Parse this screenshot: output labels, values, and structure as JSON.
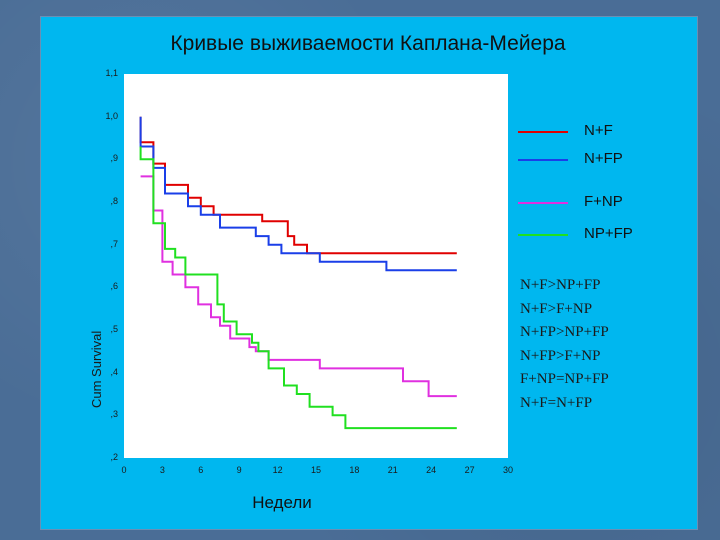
{
  "chart_data": {
    "type": "line",
    "title": "Кривые выживаемости Каплана-Мейера",
    "xlabel": "Недели",
    "ylabel": "Cum Survival",
    "xlim": [
      0,
      30
    ],
    "ylim": [
      0.2,
      1.1
    ],
    "x_ticks": [
      "0",
      "3",
      "6",
      "9",
      "12",
      "15",
      "18",
      "21",
      "24",
      "27",
      "30"
    ],
    "y_ticks": [
      "1,1",
      "1,0",
      ",9",
      ",8",
      ",7",
      ",6",
      ",5",
      ",4",
      ",3",
      ",2"
    ],
    "legend_position": "right",
    "series": [
      {
        "name": "N+F",
        "color": "#e00000",
        "points": [
          [
            1.3,
            1.0
          ],
          [
            1.3,
            0.94
          ],
          [
            2.3,
            0.94
          ],
          [
            2.3,
            0.89
          ],
          [
            3.2,
            0.89
          ],
          [
            3.2,
            0.84
          ],
          [
            5.0,
            0.84
          ],
          [
            5.0,
            0.81
          ],
          [
            6.0,
            0.81
          ],
          [
            6.0,
            0.79
          ],
          [
            7.0,
            0.79
          ],
          [
            7.0,
            0.77
          ],
          [
            10.8,
            0.77
          ],
          [
            10.8,
            0.755
          ],
          [
            12.8,
            0.755
          ],
          [
            12.8,
            0.72
          ],
          [
            13.3,
            0.72
          ],
          [
            13.3,
            0.7
          ],
          [
            14.3,
            0.7
          ],
          [
            14.3,
            0.68
          ],
          [
            26.0,
            0.68
          ]
        ]
      },
      {
        "name": "N+FP",
        "color": "#1a3fe8",
        "points": [
          [
            1.3,
            1.0
          ],
          [
            1.3,
            0.93
          ],
          [
            2.3,
            0.93
          ],
          [
            2.3,
            0.88
          ],
          [
            3.2,
            0.88
          ],
          [
            3.2,
            0.82
          ],
          [
            5.0,
            0.82
          ],
          [
            5.0,
            0.79
          ],
          [
            6.0,
            0.79
          ],
          [
            6.0,
            0.77
          ],
          [
            7.5,
            0.77
          ],
          [
            7.5,
            0.74
          ],
          [
            10.3,
            0.74
          ],
          [
            10.3,
            0.72
          ],
          [
            11.3,
            0.72
          ],
          [
            11.3,
            0.7
          ],
          [
            12.3,
            0.7
          ],
          [
            12.3,
            0.68
          ],
          [
            15.3,
            0.68
          ],
          [
            15.3,
            0.66
          ],
          [
            20.5,
            0.66
          ],
          [
            20.5,
            0.64
          ],
          [
            26.0,
            0.64
          ]
        ]
      },
      {
        "name": "F+NP",
        "color": "#e030e0",
        "points": [
          [
            1.3,
            0.86
          ],
          [
            2.3,
            0.86
          ],
          [
            2.3,
            0.78
          ],
          [
            3.0,
            0.78
          ],
          [
            3.0,
            0.66
          ],
          [
            3.8,
            0.66
          ],
          [
            3.8,
            0.63
          ],
          [
            4.8,
            0.63
          ],
          [
            4.8,
            0.6
          ],
          [
            5.8,
            0.6
          ],
          [
            5.8,
            0.56
          ],
          [
            6.8,
            0.56
          ],
          [
            6.8,
            0.53
          ],
          [
            7.5,
            0.53
          ],
          [
            7.5,
            0.51
          ],
          [
            8.3,
            0.51
          ],
          [
            8.3,
            0.48
          ],
          [
            9.8,
            0.48
          ],
          [
            9.8,
            0.46
          ],
          [
            10.3,
            0.46
          ],
          [
            10.3,
            0.45
          ],
          [
            11.3,
            0.45
          ],
          [
            11.3,
            0.43
          ],
          [
            15.3,
            0.43
          ],
          [
            15.3,
            0.41
          ],
          [
            21.8,
            0.41
          ],
          [
            21.8,
            0.38
          ],
          [
            23.8,
            0.38
          ],
          [
            23.8,
            0.345
          ],
          [
            26.0,
            0.345
          ]
        ]
      },
      {
        "name": "NP+FP",
        "color": "#20e020",
        "points": [
          [
            1.3,
            0.93
          ],
          [
            1.3,
            0.9
          ],
          [
            2.3,
            0.9
          ],
          [
            2.3,
            0.75
          ],
          [
            3.2,
            0.75
          ],
          [
            3.2,
            0.69
          ],
          [
            4.0,
            0.69
          ],
          [
            4.0,
            0.67
          ],
          [
            4.8,
            0.67
          ],
          [
            4.8,
            0.63
          ],
          [
            7.3,
            0.63
          ],
          [
            7.3,
            0.56
          ],
          [
            7.8,
            0.56
          ],
          [
            7.8,
            0.52
          ],
          [
            8.8,
            0.52
          ],
          [
            8.8,
            0.49
          ],
          [
            10.0,
            0.49
          ],
          [
            10.0,
            0.47
          ],
          [
            10.5,
            0.47
          ],
          [
            10.5,
            0.45
          ],
          [
            11.3,
            0.45
          ],
          [
            11.3,
            0.41
          ],
          [
            12.5,
            0.41
          ],
          [
            12.5,
            0.37
          ],
          [
            13.5,
            0.37
          ],
          [
            13.5,
            0.35
          ],
          [
            14.5,
            0.35
          ],
          [
            14.5,
            0.32
          ],
          [
            16.3,
            0.32
          ],
          [
            16.3,
            0.3
          ],
          [
            17.3,
            0.3
          ],
          [
            17.3,
            0.27
          ],
          [
            26.0,
            0.27
          ]
        ]
      }
    ],
    "annotations": [
      "N+F>NP+FP",
      "N+F>F+NP",
      "N+FP>NP+FP",
      "N+FP>F+NP",
      "F+NP=NP+FP",
      "N+F=N+FP"
    ]
  }
}
